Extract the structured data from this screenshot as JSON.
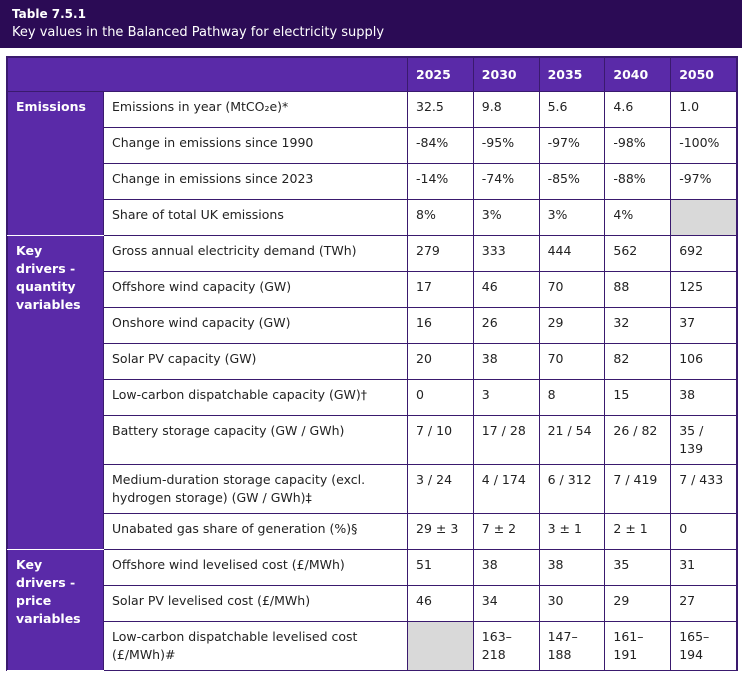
{
  "header": {
    "title": "Table 7.5.1",
    "subtitle": "Key values in the Balanced Pathway for electricity supply"
  },
  "table": {
    "columns": [
      "2025",
      "2030",
      "2035",
      "2040",
      "2050"
    ],
    "groups": [
      {
        "label": "Emissions",
        "rows": [
          {
            "label": "Emissions in year (MtCO₂e)*",
            "values": [
              "32.5",
              "9.8",
              "5.6",
              "4.6",
              "1.0"
            ]
          },
          {
            "label": "Change in emissions since 1990",
            "values": [
              "-84%",
              "-95%",
              "-97%",
              "-98%",
              "-100%"
            ]
          },
          {
            "label": "Change in emissions since 2023",
            "values": [
              "-14%",
              "-74%",
              "-85%",
              "-88%",
              "-97%"
            ]
          },
          {
            "label": "Share of total UK emissions",
            "values": [
              "8%",
              "3%",
              "3%",
              "4%",
              null
            ]
          }
        ]
      },
      {
        "label": "Key drivers - quantity variables",
        "rows": [
          {
            "label": "Gross annual electricity demand (TWh)",
            "values": [
              "279",
              "333",
              "444",
              "562",
              "692"
            ]
          },
          {
            "label": "Offshore wind capacity (GW)",
            "values": [
              "17",
              "46",
              "70",
              "88",
              "125"
            ]
          },
          {
            "label": "Onshore wind capacity (GW)",
            "values": [
              "16",
              "26",
              "29",
              "32",
              "37"
            ]
          },
          {
            "label": "Solar PV capacity (GW)",
            "values": [
              "20",
              "38",
              "70",
              "82",
              "106"
            ]
          },
          {
            "label": "Low-carbon dispatchable capacity (GW)†",
            "values": [
              "0",
              "3",
              "8",
              "15",
              "38"
            ]
          },
          {
            "label": "Battery storage capacity (GW / GWh)",
            "values": [
              "7 / 10",
              "17 / 28",
              "21 / 54",
              "26 / 82",
              "35 / 139"
            ]
          },
          {
            "label": "Medium-duration storage capacity (excl. hydrogen storage) (GW / GWh)‡",
            "values": [
              "3 / 24",
              "4 / 174",
              "6 / 312",
              "7 / 419",
              "7 / 433"
            ]
          },
          {
            "label": "Unabated gas share of generation (%)§",
            "values": [
              "29 ± 3",
              "7 ± 2",
              "3 ± 1",
              "2 ± 1",
              "0"
            ]
          }
        ]
      },
      {
        "label": "Key drivers - price variables",
        "rows": [
          {
            "label": "Offshore wind levelised cost (£/MWh)",
            "values": [
              "51",
              "38",
              "38",
              "35",
              "31"
            ]
          },
          {
            "label": "Solar PV levelised cost (£/MWh)",
            "values": [
              "46",
              "34",
              "30",
              "29",
              "27"
            ]
          },
          {
            "label": "Low-carbon dispatchable levelised cost (£/MWh)#",
            "values": [
              null,
              "163–218",
              "147–188",
              "161–191",
              "165–194"
            ]
          }
        ]
      }
    ]
  }
}
